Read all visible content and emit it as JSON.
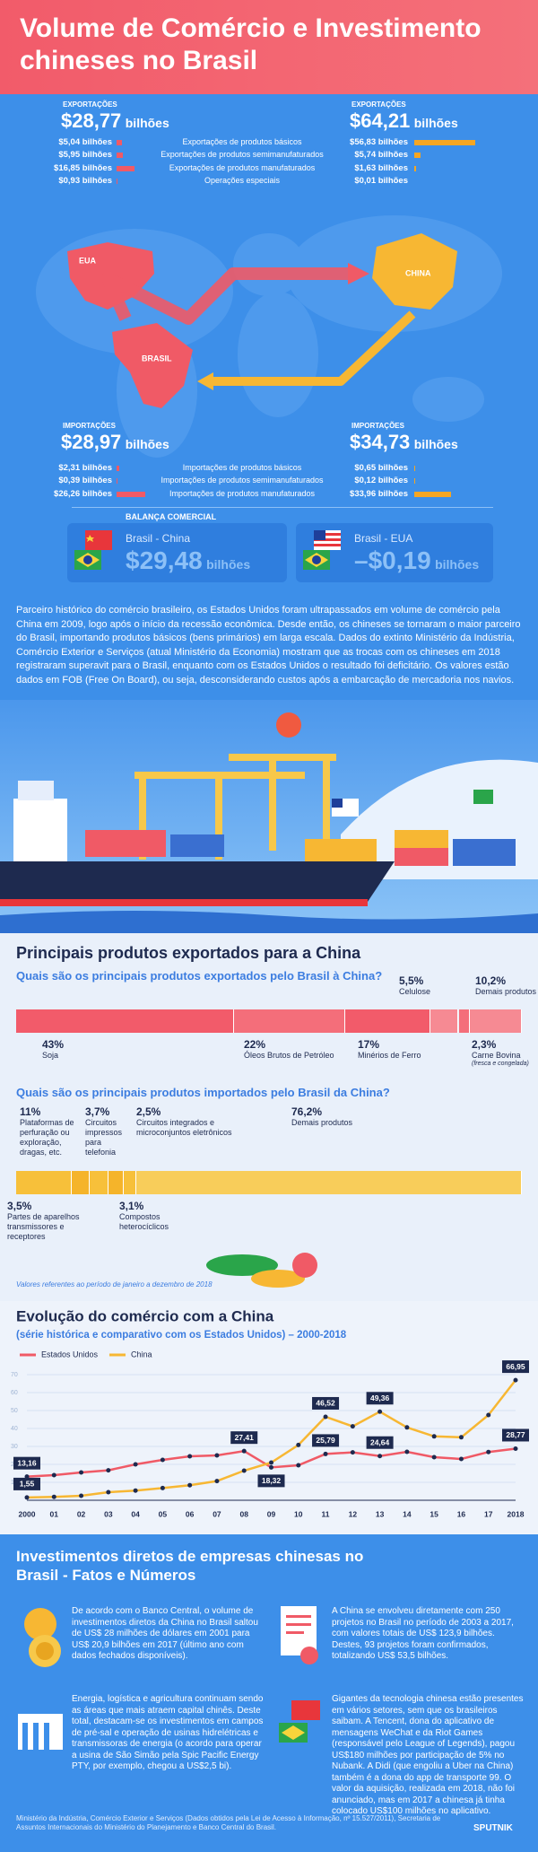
{
  "header": {
    "title": "Volume de Comércio e Investimento chineses no Brasil"
  },
  "trade": {
    "map_labels": [
      "EUA",
      "CHINA",
      "BRASIL"
    ],
    "export_row_labels": [
      "Exportações de produtos básicos",
      "Exportações de produtos semimanufaturados",
      "Exportações de produtos manufaturados",
      "Operações especiais"
    ],
    "import_row_labels": [
      "Importações de produtos básicos",
      "Importações de produtos semimanufaturados",
      "Importações de produtos manufaturados"
    ],
    "exports_usa": {
      "heading": "EXPORTAÇÕES",
      "total": "$28,77",
      "unit": "bilhões",
      "rows": [
        {
          "value": 5.04,
          "label": "$5,04 bilhões"
        },
        {
          "value": 5.95,
          "label": "$5,95 bilhões"
        },
        {
          "value": 16.85,
          "label": "$16,85 bilhões"
        },
        {
          "value": 0.93,
          "label": "$0,93 bilhões"
        }
      ]
    },
    "exports_china": {
      "heading": "EXPORTAÇÕES",
      "total": "$64,21",
      "unit": "bilhões",
      "rows": [
        {
          "value": 56.83,
          "label": "$56,83 bilhões"
        },
        {
          "value": 5.74,
          "label": "$5,74 bilhões"
        },
        {
          "value": 1.63,
          "label": "$1,63 bilhões"
        },
        {
          "value": 0.01,
          "label": "$0,01 bilhões"
        }
      ]
    },
    "imports_usa": {
      "heading": "IMPORTAÇÕES",
      "total": "$28,97",
      "unit": "bilhões",
      "rows": [
        {
          "value": 2.31,
          "label": "$2,31 bilhões"
        },
        {
          "value": 0.39,
          "label": "$0,39 bilhões"
        },
        {
          "value": 26.26,
          "label": "$26,26 bilhões"
        }
      ]
    },
    "imports_china": {
      "heading": "IMPORTAÇÕES",
      "total": "$34,73",
      "unit": "bilhões",
      "rows": [
        {
          "value": 0.65,
          "label": "$0,65 bilhões"
        },
        {
          "value": 0.12,
          "label": "$0,12 bilhões"
        },
        {
          "value": 33.96,
          "label": "$33,96 bilhões"
        }
      ]
    }
  },
  "balance": {
    "heading": "BALANÇA COMERCIAL",
    "items": [
      {
        "name": "Brasil - China",
        "value": "$29,48",
        "unit": "bilhões"
      },
      {
        "name": "Brasil - EUA",
        "value": "–$0,19",
        "unit": "bilhões"
      }
    ]
  },
  "intro": "Parceiro histórico do comércio brasileiro, os Estados Unidos foram ultrapassados em volume de comércio pela China em 2009, logo após o início da recessão econômica. Desde então, os chineses se tornaram o maior parceiro do Brasil, importando produtos básicos (bens primários) em larga escala. Dados do extinto Ministério da Indústria, Comércio Exterior e Serviços (atual Ministério da Economia) mostram que as trocas com os chineses em 2018 registraram superavit para o Brasil, enquanto com os Estados Unidos o resultado foi deficitário. Os valores estão dados em FOB (Free On Board), ou seja, desconsiderando custos após a embarcação de mercadoria nos navios.",
  "products": {
    "title": "Principais produtos exportados para a China",
    "exports": {
      "question": "Quais são os principais produtos exportados pelo Brasil à China?",
      "items": [
        {
          "name": "Soja",
          "value": 43,
          "label": "43%"
        },
        {
          "name": "Óleos Brutos de Petróleo",
          "value": 22,
          "label": "22%"
        },
        {
          "name": "Minérios de Ferro",
          "value": 17,
          "label": "17%"
        },
        {
          "name": "Celulose",
          "value": 5.5,
          "label": "5,5%"
        },
        {
          "name": "Carne Bovina",
          "note": "(fresca e congelada)",
          "value": 2.3,
          "label": "2,3%"
        },
        {
          "name": "Demais produtos",
          "value": 10.2,
          "label": "10,2%"
        }
      ]
    },
    "imports": {
      "question": "Quais são os principais produtos importados pelo Brasil da China?",
      "items": [
        {
          "name": "Plataformas de perfuração ou exploração, dragas, etc.",
          "value": 11,
          "label": "11%"
        },
        {
          "name": "Partes de aparelhos transmissores e receptores",
          "value": 3.5,
          "label": "3,5%"
        },
        {
          "name": "Circuitos impressos para telefonia",
          "value": 3.7,
          "label": "3,7%"
        },
        {
          "name": "Compostos heterocíclicos",
          "value": 3.1,
          "label": "3,1%"
        },
        {
          "name": "Circuitos integrados e microconjuntos eletrônicos",
          "value": 2.5,
          "label": "2,5%"
        },
        {
          "name": "Demais produtos",
          "value": 76.2,
          "label": "76,2%"
        }
      ]
    },
    "note": "Valores referentes ao período de janeiro a dezembro de 2018"
  },
  "chart_data": {
    "type": "line",
    "title": "Evolução do comércio com a China",
    "subtitle": "(série histórica e comparativo com os Estados Unidos) – 2000-2018",
    "categories": [
      "2000",
      "01",
      "02",
      "03",
      "04",
      "05",
      "06",
      "07",
      "08",
      "09",
      "10",
      "11",
      "12",
      "13",
      "14",
      "15",
      "16",
      "17",
      "2018"
    ],
    "ylim": [
      0,
      70
    ],
    "yticks": [
      10,
      20,
      30,
      40,
      50,
      60,
      70
    ],
    "grid": true,
    "series": [
      {
        "name": "Estados Unidos",
        "color": "#f05a66",
        "values": [
          13.16,
          14,
          15.5,
          16.7,
          20,
          22.5,
          24.5,
          25,
          27.41,
          18.32,
          19.5,
          25.79,
          26.7,
          24.64,
          27,
          24,
          23,
          26.9,
          28.77
        ],
        "value_labels": [
          "13,16",
          null,
          null,
          null,
          null,
          null,
          null,
          null,
          "27,41",
          "18,32",
          null,
          "25,79",
          null,
          "24,64",
          null,
          null,
          null,
          null,
          "28,77"
        ]
      },
      {
        "name": "China",
        "color": "#f7b733",
        "values": [
          1.55,
          1.9,
          2.5,
          4.5,
          5.4,
          6.8,
          8.4,
          10.7,
          16.5,
          21,
          30.8,
          46.52,
          41.2,
          49.36,
          40.6,
          35.6,
          35.1,
          47.5,
          66.95
        ],
        "value_labels": [
          "1,55",
          null,
          null,
          null,
          null,
          null,
          null,
          null,
          null,
          null,
          null,
          "46,52",
          null,
          "49,36",
          null,
          null,
          null,
          null,
          "66,95"
        ]
      }
    ]
  },
  "investments": {
    "title": "Investimentos diretos de empresas chinesas no Brasil - Fatos e Números",
    "paragraphs": [
      "De acordo com o Banco Central, o volume de investimentos diretos da China no Brasil saltou de US$ 28 milhões de dólares em 2001 para US$ 20,9 bilhões em 2017 (último ano com dados fechados disponíveis).",
      "A China se envolveu diretamente com 250 projetos no Brasil no período de 2003 a 2017, com valores totais de US$ 123,9 bilhões. Destes, 93 projetos foram confirmados, totalizando US$ 53,5 bilhões.",
      "Energia, logística e agricultura continuam sendo as áreas que mais atraem capital chinês. Deste total, destacam-se os investimentos em campos de pré-sal e operação de usinas hidrelétricas e transmissoras de energia (o acordo para operar a usina de São Simão pela Spic Pacific Energy PTY, por exemplo, chegou a US$2,5 bi).",
      "Gigantes da tecnologia chinesa estão presentes em vários setores, sem que os brasileiros saibam. A Tencent, dona do aplicativo de mensagens WeChat e da Riot Games (responsável pelo League of Legends), pagou US$180 milhões por participação de 5% no Nubank. A Didi (que engoliu a Uber na China) também é a dona do app de transporte 99. O valor da aquisição, realizada em 2018, não foi anunciado, mas em 2017 a chinesa já tinha colocado US$100 milhões no aplicativo."
    ]
  },
  "footer": {
    "source": "Ministério da Indústria, Comércio Exterior e Serviços (Dados obtidos pela Lei de Acesso à Informação, nº 15.527/2011), Secretaria de Assuntos Internacionais do Ministério do Planejamento e Banco Central do Brasil.",
    "brand": "SPUTNIK"
  }
}
